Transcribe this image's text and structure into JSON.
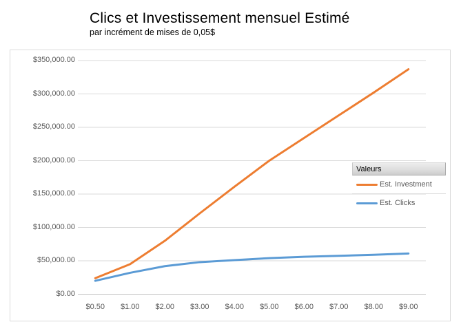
{
  "header": {
    "title": "Clics et Investissement mensuel Estimé",
    "subtitle": "par incrément de mises de 0,05$"
  },
  "legend": {
    "header": "Valeurs",
    "items": [
      {
        "label": "Est. Investment",
        "color": "#ED7D31"
      },
      {
        "label": "Est. Clicks",
        "color": "#5B9BD5"
      }
    ]
  },
  "chart_data": {
    "type": "line",
    "title": "Clics et Investissement mensuel Estimé",
    "subtitle": "par incrément de mises de 0,05$",
    "categories": [
      "$0.50",
      "$1.00",
      "$2.00",
      "$3.00",
      "$4.00",
      "$5.00",
      "$6.00",
      "$7.00",
      "$8.00",
      "$9.00"
    ],
    "series": [
      {
        "name": "Est. Investment",
        "color": "#ED7D31",
        "values": [
          24000,
          45000,
          80000,
          121000,
          161000,
          200000,
          234000,
          268000,
          302000,
          337000
        ]
      },
      {
        "name": "Est. Clicks",
        "color": "#5B9BD5",
        "values": [
          20000,
          32000,
          42000,
          48000,
          51000,
          54000,
          56000,
          57500,
          59000,
          61000
        ]
      }
    ],
    "y_ticks": [
      {
        "value": 0,
        "label": "$0.00"
      },
      {
        "value": 50000,
        "label": "$50,000.00"
      },
      {
        "value": 100000,
        "label": "$100,000.00"
      },
      {
        "value": 150000,
        "label": "$150,000.00"
      },
      {
        "value": 200000,
        "label": "$200,000.00"
      },
      {
        "value": 250000,
        "label": "$250,000.00"
      },
      {
        "value": 300000,
        "label": "$300,000.00"
      },
      {
        "value": 350000,
        "label": "$350,000.00"
      }
    ],
    "ylim": [
      0,
      350000
    ],
    "grid": true,
    "legend_position": "inside-right",
    "colors": {
      "gridline": "#d9d9d9",
      "axis_line": "#bfbfbf",
      "axis_label": "#595959",
      "legend_text": "#595959",
      "chart_border": "#d9d9d9",
      "background": "#ffffff"
    }
  }
}
